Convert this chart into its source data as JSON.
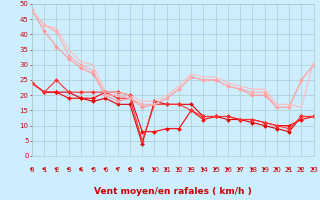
{
  "x": [
    0,
    1,
    2,
    3,
    4,
    5,
    6,
    7,
    8,
    9,
    10,
    11,
    12,
    13,
    14,
    15,
    16,
    17,
    18,
    19,
    20,
    21,
    22,
    23
  ],
  "series": [
    {
      "name": "line1_dark_red",
      "color": "#dd0000",
      "linewidth": 0.8,
      "marker": "D",
      "markersize": 2.0,
      "values": [
        24,
        21,
        21,
        21,
        19,
        18,
        19,
        17,
        17,
        4,
        18,
        17,
        17,
        17,
        13,
        13,
        12,
        12,
        11,
        10,
        9,
        8,
        13,
        13
      ]
    },
    {
      "name": "line2_dark_red",
      "color": "#ff0000",
      "linewidth": 0.8,
      "marker": "D",
      "markersize": 2.0,
      "values": [
        24,
        21,
        21,
        19,
        19,
        19,
        21,
        21,
        20,
        8,
        8,
        9,
        9,
        15,
        12,
        13,
        13,
        12,
        12,
        11,
        10,
        10,
        12,
        13
      ]
    },
    {
      "name": "line3_dark_red",
      "color": "#ff3333",
      "linewidth": 0.8,
      "marker": "D",
      "markersize": 2.0,
      "values": [
        24,
        21,
        25,
        21,
        21,
        21,
        21,
        19,
        19,
        5,
        17,
        17,
        17,
        15,
        13,
        13,
        13,
        12,
        12,
        11,
        10,
        9,
        13,
        13
      ]
    },
    {
      "name": "line4_light_pink",
      "color": "#ff9999",
      "linewidth": 0.8,
      "marker": "D",
      "markersize": 2.0,
      "values": [
        48,
        41,
        36,
        32,
        29,
        27,
        20,
        18,
        19,
        16,
        17,
        19,
        22,
        26,
        25,
        25,
        23,
        22,
        20,
        20,
        16,
        16,
        25,
        30
      ]
    },
    {
      "name": "line5_light_pink",
      "color": "#ffaaaa",
      "linewidth": 0.8,
      "marker": "D",
      "markersize": 2.0,
      "values": [
        48,
        43,
        41,
        33,
        30,
        28,
        20,
        20,
        19,
        17,
        17,
        19,
        22,
        26,
        25,
        25,
        23,
        22,
        21,
        21,
        16,
        16,
        25,
        30
      ]
    },
    {
      "name": "line6_lightest_pink",
      "color": "#ffbbbb",
      "linewidth": 0.8,
      "marker": null,
      "markersize": 0,
      "values": [
        48,
        43,
        42,
        35,
        31,
        30,
        21,
        21,
        20,
        18,
        18,
        20,
        23,
        27,
        26,
        26,
        24,
        23,
        22,
        22,
        17,
        17,
        16,
        31
      ]
    }
  ],
  "xlabel": "Vent moyen/en rafales ( km/h )",
  "xlim": [
    0,
    23
  ],
  "ylim": [
    0,
    50
  ],
  "xticks": [
    0,
    1,
    2,
    3,
    4,
    5,
    6,
    7,
    8,
    9,
    10,
    11,
    12,
    13,
    14,
    15,
    16,
    17,
    18,
    19,
    20,
    21,
    22,
    23
  ],
  "yticks": [
    0,
    5,
    10,
    15,
    20,
    25,
    30,
    35,
    40,
    45,
    50
  ],
  "bg_color": "#cceeff",
  "grid_color": "#aacccc",
  "tick_color": "#cc0000",
  "label_color": "#cc0000",
  "xlabel_fontsize": 6.5,
  "tick_fontsize": 5.0,
  "arrow_color": "#cc0000"
}
